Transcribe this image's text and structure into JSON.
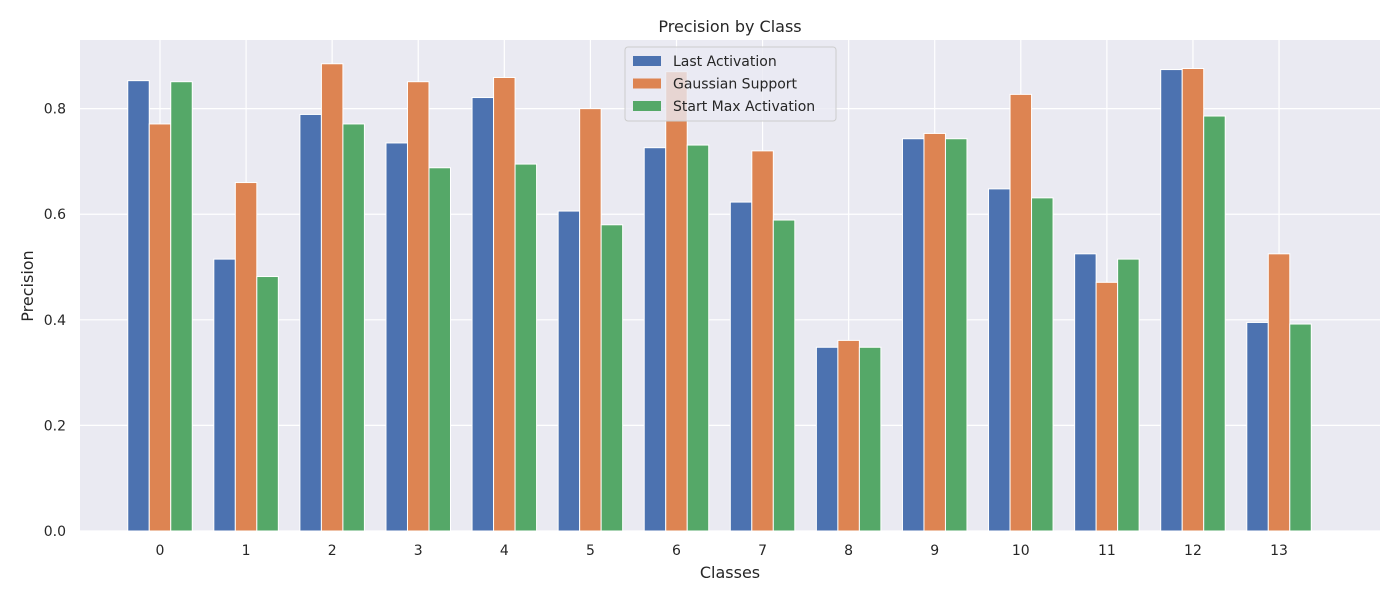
{
  "chart_data": {
    "type": "bar",
    "title": "Precision by Class",
    "xlabel": "Classes",
    "ylabel": "Precision",
    "categories": [
      "0",
      "1",
      "2",
      "3",
      "4",
      "5",
      "6",
      "7",
      "8",
      "9",
      "10",
      "11",
      "12",
      "13"
    ],
    "series": [
      {
        "name": "Last Activation",
        "color": "#4c72b0",
        "values": [
          0.853,
          0.515,
          0.789,
          0.735,
          0.821,
          0.606,
          0.726,
          0.623,
          0.348,
          0.743,
          0.648,
          0.525,
          0.874,
          0.395
        ]
      },
      {
        "name": "Gaussian Support",
        "color": "#dd8452",
        "values": [
          0.771,
          0.66,
          0.885,
          0.851,
          0.859,
          0.8,
          0.87,
          0.72,
          0.361,
          0.753,
          0.827,
          0.471,
          0.876,
          0.525
        ]
      },
      {
        "name": "Start Max Activation",
        "color": "#55a868",
        "values": [
          0.851,
          0.482,
          0.771,
          0.688,
          0.695,
          0.58,
          0.731,
          0.589,
          0.348,
          0.743,
          0.631,
          0.515,
          0.786,
          0.392
        ]
      }
    ],
    "yticks": [
      0.0,
      0.2,
      0.4,
      0.6,
      0.8
    ],
    "ytick_labels": [
      "0.0",
      "0.2",
      "0.4",
      "0.6",
      "0.8"
    ],
    "ylim": [
      0,
      0.93
    ],
    "grid": true,
    "legend_position": "top-center"
  }
}
